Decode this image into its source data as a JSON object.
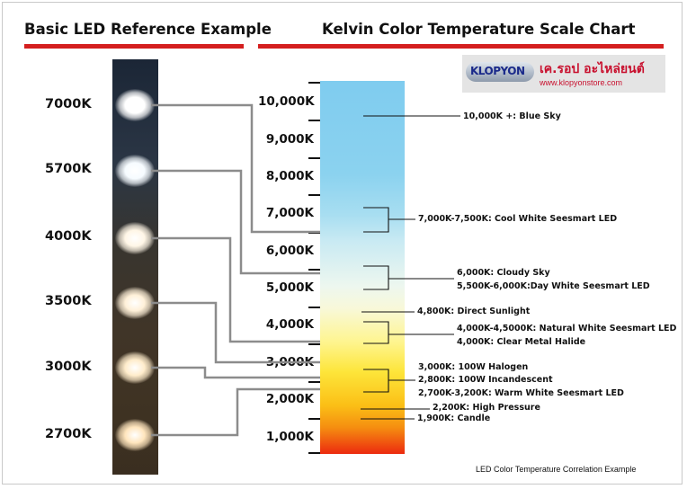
{
  "titles": {
    "left": "Basic LED Reference Example",
    "right": "Kelvin Color Temperature Scale Chart"
  },
  "leds": [
    {
      "label": "7000K",
      "color": "#ffffff"
    },
    {
      "label": "5700K",
      "color": "#f6fbff"
    },
    {
      "label": "4000K",
      "color": "#fff6e6"
    },
    {
      "label": "3500K",
      "color": "#fff0d8"
    },
    {
      "label": "3000K",
      "color": "#ffeccb"
    },
    {
      "label": "2700K",
      "color": "#ffe5bd"
    }
  ],
  "scale": {
    "labels": [
      "10,000K",
      "9,000K",
      "8,000K",
      "7,000K",
      "6,000K",
      "5,000K",
      "4,000K",
      "3,000K",
      "2,000K",
      "1,000K"
    ],
    "colors": {
      "top": "#7fccef",
      "bottom": "#ec2a0f"
    }
  },
  "annotations": {
    "blue_sky": "10,000K +: Blue Sky",
    "cool_white": "7,000K-7,500K: Cool White Seesmart LED",
    "cloudy": "6,000K: Cloudy Sky",
    "day_white": "5,500K-6,000K:Day White Seesmart LED",
    "sunlight": "4,800K: Direct Sunlight",
    "natural_white": "4,000K-4,5000K: Natural White Seesmart LED",
    "metal_halide": "4,000K: Clear Metal Halide",
    "halogen": "3,000K: 100W Halogen",
    "incandescent": "2,800K: 100W Incandescent",
    "warm_white": "2,700K-3,200K: Warm White Seesmart LED",
    "high_pressure": "2,200K: High Pressure",
    "candle": "1,900K: Candle"
  },
  "logo": {
    "brand": "KLOPYON",
    "shop_name": "เค.รอป อะไหล่ยนต์",
    "url": "www.klopyonstore.com"
  },
  "footer": "LED Color Temperature Correlation Example"
}
